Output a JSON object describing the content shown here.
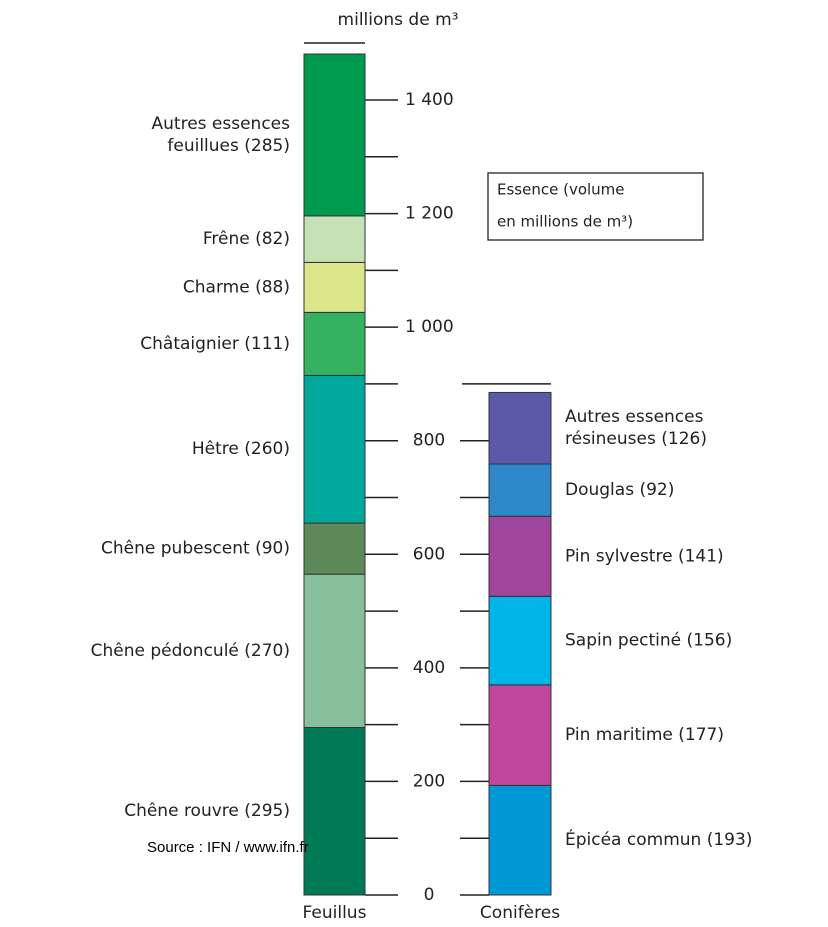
{
  "chart_data": {
    "type": "stacked_column",
    "ylabel": "millions de m³",
    "ylim": [
      0,
      1400
    ],
    "yticks": [
      {
        "value": 0,
        "label": "0"
      },
      200,
      400,
      600,
      800,
      {
        "value": 1000,
        "label": "1 000"
      },
      {
        "value": 1200,
        "label": "1 200"
      },
      {
        "value": 1400,
        "label": "1 400"
      }
    ],
    "minor_yticks": [
      100,
      300,
      500,
      700,
      900,
      1100,
      1300
    ],
    "legend_note": [
      "Essence (volume",
      "en millions de m³)"
    ],
    "source": "Source : IFN / www.ifn.fr",
    "stacks": [
      {
        "name": "Feuillus",
        "categories": [
          "Chêne rouvre",
          "Chêne pédonculé",
          "Chêne pubescent",
          "Hêtre",
          "Châtaignier",
          "Charme",
          "Frêne",
          "Autres essences feuillues"
        ],
        "values": [
          295,
          270,
          90,
          260,
          111,
          88,
          82,
          285
        ],
        "value_labels": [
          "(295)",
          "(270)",
          "(90)",
          "(260)",
          "(111)",
          "(88)",
          "(82)",
          "(285)"
        ],
        "colors": [
          "#007a55",
          "#88bf9c",
          "#5e8a5a",
          "#00a89c",
          "#34b262",
          "#dce68a",
          "#c5e1b5",
          "#009a4e"
        ]
      },
      {
        "name": "Conifères",
        "categories": [
          "Épicéa commun",
          "Pin maritime",
          "Sapin pectiné",
          "Pin sylvestre",
          "Douglas",
          "Autres essences résineuses"
        ],
        "values": [
          193,
          177,
          156,
          141,
          92,
          126
        ],
        "value_labels": [
          "(193)",
          "(177)",
          "(156)",
          "(141)",
          "(92)",
          "(126)"
        ],
        "colors": [
          "#0098d4",
          "#c0479c",
          "#00b5e8",
          "#a0469c",
          "#2d87c8",
          "#5b5aa8"
        ]
      }
    ]
  }
}
